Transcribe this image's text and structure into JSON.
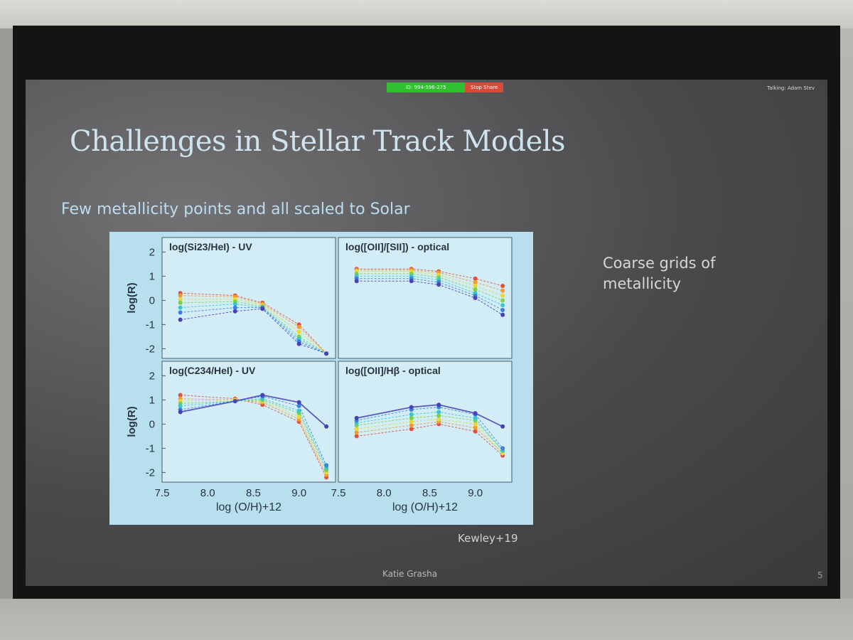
{
  "slide": {
    "title": "Challenges in Stellar Track Models",
    "subtitle": "Few metallicity points and all scaled to Solar",
    "side_note": "Coarse grids of metallicity",
    "citation": "Kewley+19",
    "author": "Katie Grasha",
    "page_number": "5"
  },
  "zoom": {
    "meeting_id": "ID: 994-596-275",
    "stop_share": "Stop Share",
    "talking": "Talking: Adam Stev"
  },
  "colors": {
    "title": "#cfe3ef",
    "subtitle": "#bcdcf0",
    "zoom_green": "#2fbf2f",
    "zoom_red": "#d84a3a"
  },
  "chart_data": [
    {
      "type": "line",
      "title": "log(Si23/HeI) - UV",
      "xlabel": "log (O/H)+12",
      "ylabel": "log(R)",
      "xlim": [
        7.5,
        9.4
      ],
      "ylim": [
        -2.4,
        2.6
      ],
      "xticks": [
        "7.5",
        "8.0",
        "8.5",
        "9.0"
      ],
      "yticks": [
        "-2",
        "-1",
        "0",
        "1",
        "2"
      ],
      "x": [
        7.7,
        8.3,
        8.6,
        9.0,
        9.3
      ],
      "series": [
        {
          "color": "#e0503a",
          "values": [
            0.3,
            0.2,
            -0.1,
            -1.0,
            -2.2
          ]
        },
        {
          "color": "#f09a30",
          "values": [
            0.2,
            0.15,
            -0.15,
            -1.1,
            -2.2
          ]
        },
        {
          "color": "#e8d83a",
          "values": [
            0.05,
            0.05,
            -0.2,
            -1.3,
            -2.2
          ]
        },
        {
          "color": "#7ed04a",
          "values": [
            -0.1,
            -0.05,
            -0.25,
            -1.5,
            -2.2
          ]
        },
        {
          "color": "#38c8c8",
          "values": [
            -0.3,
            -0.15,
            -0.3,
            -1.6,
            -2.2
          ]
        },
        {
          "color": "#3a80e0",
          "values": [
            -0.5,
            -0.3,
            -0.3,
            -1.7,
            -2.2
          ]
        },
        {
          "color": "#4a40b8",
          "values": [
            -0.8,
            -0.45,
            -0.35,
            -1.8,
            -2.2
          ]
        }
      ]
    },
    {
      "type": "line",
      "title": "log([OII]/[SII]) - optical",
      "xlabel": "log (O/H)+12",
      "ylabel": "log(R)",
      "xlim": [
        7.5,
        9.4
      ],
      "ylim": [
        -2.4,
        2.6
      ],
      "xticks": [
        "7.5",
        "8.0",
        "8.5",
        "9.0"
      ],
      "yticks": [
        "-2",
        "-1",
        "0",
        "1",
        "2"
      ],
      "x": [
        7.7,
        8.3,
        8.6,
        9.0,
        9.3
      ],
      "series": [
        {
          "color": "#e0503a",
          "values": [
            1.3,
            1.3,
            1.2,
            0.9,
            0.6
          ]
        },
        {
          "color": "#f09a30",
          "values": [
            1.25,
            1.25,
            1.15,
            0.75,
            0.4
          ]
        },
        {
          "color": "#e8d83a",
          "values": [
            1.2,
            1.2,
            1.05,
            0.6,
            0.2
          ]
        },
        {
          "color": "#7ed04a",
          "values": [
            1.1,
            1.1,
            0.95,
            0.45,
            0.0
          ]
        },
        {
          "color": "#38c8c8",
          "values": [
            1.0,
            1.0,
            0.85,
            0.3,
            -0.2
          ]
        },
        {
          "color": "#3a80e0",
          "values": [
            0.9,
            0.9,
            0.75,
            0.2,
            -0.4
          ]
        },
        {
          "color": "#4a40b8",
          "values": [
            0.8,
            0.8,
            0.65,
            0.1,
            -0.6
          ]
        }
      ]
    },
    {
      "type": "line",
      "title": "log(C234/HeI) - UV",
      "xlabel": "log (O/H)+12",
      "ylabel": "log(R)",
      "xlim": [
        7.5,
        9.4
      ],
      "ylim": [
        -2.4,
        2.6
      ],
      "xticks": [
        "7.5",
        "8.0",
        "8.5",
        "9.0"
      ],
      "yticks": [
        "-2",
        "-1",
        "0",
        "1",
        "2"
      ],
      "x": [
        7.7,
        8.3,
        8.6,
        9.0,
        9.3
      ],
      "series": [
        {
          "color": "#e0503a",
          "values": [
            1.2,
            1.05,
            0.8,
            0.1,
            -2.2
          ]
        },
        {
          "color": "#f09a30",
          "values": [
            1.05,
            1.0,
            0.9,
            0.2,
            -2.1
          ]
        },
        {
          "color": "#e8d83a",
          "values": [
            0.95,
            1.0,
            0.95,
            0.3,
            -2.0
          ]
        },
        {
          "color": "#7ed04a",
          "values": [
            0.85,
            0.95,
            1.0,
            0.45,
            -1.9
          ]
        },
        {
          "color": "#38c8c8",
          "values": [
            0.75,
            0.95,
            1.05,
            0.55,
            -1.8
          ]
        },
        {
          "color": "#3a80e0",
          "values": [
            0.6,
            0.95,
            1.15,
            0.75,
            -1.7
          ]
        },
        {
          "color": "#4a40b8",
          "values": [
            0.5,
            0.95,
            1.2,
            0.9,
            -0.1
          ]
        }
      ]
    },
    {
      "type": "line",
      "title": "log([OII]/Hβ - optical",
      "xlabel": "log (O/H)+12",
      "ylabel": "log(R)",
      "xlim": [
        7.5,
        9.4
      ],
      "ylim": [
        -2.4,
        2.6
      ],
      "xticks": [
        "7.5",
        "8.0",
        "8.5",
        "9.0"
      ],
      "yticks": [
        "-2",
        "-1",
        "0",
        "1",
        "2"
      ],
      "x": [
        7.7,
        8.3,
        8.6,
        9.0,
        9.3
      ],
      "series": [
        {
          "color": "#e0503a",
          "values": [
            -0.5,
            -0.2,
            0.0,
            -0.3,
            -1.3
          ]
        },
        {
          "color": "#f09a30",
          "values": [
            -0.35,
            -0.05,
            0.1,
            -0.15,
            -1.2
          ]
        },
        {
          "color": "#e8d83a",
          "values": [
            -0.2,
            0.1,
            0.2,
            0.0,
            -1.2
          ]
        },
        {
          "color": "#7ed04a",
          "values": [
            -0.05,
            0.25,
            0.35,
            0.15,
            -1.1
          ]
        },
        {
          "color": "#38c8c8",
          "values": [
            0.05,
            0.4,
            0.5,
            0.25,
            -1.1
          ]
        },
        {
          "color": "#3a80e0",
          "values": [
            0.15,
            0.6,
            0.7,
            0.4,
            -1.0
          ]
        },
        {
          "color": "#4a40b8",
          "values": [
            0.25,
            0.7,
            0.8,
            0.45,
            -0.1
          ]
        }
      ]
    }
  ]
}
